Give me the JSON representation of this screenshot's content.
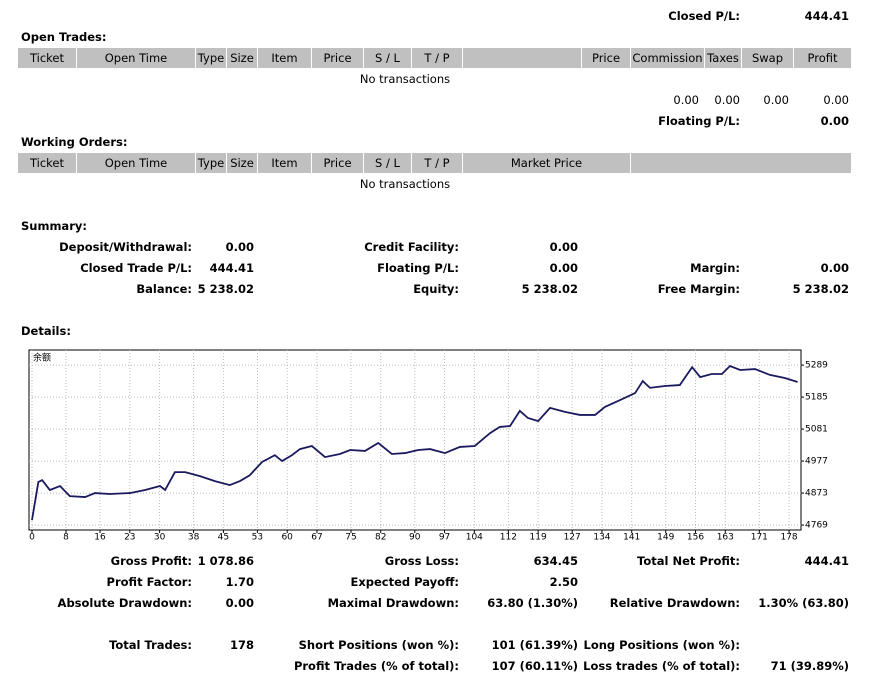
{
  "closed_pl": {
    "label": "Closed P/L:",
    "value": "444.41"
  },
  "open_trades": {
    "title": "Open Trades:",
    "headers": [
      "Ticket",
      "Open Time",
      "Type",
      "Size",
      "Item",
      "Price",
      "S / L",
      "T / P",
      "Price",
      "Commission",
      "Taxes",
      "Swap",
      "Profit"
    ],
    "empty": "No transactions",
    "totals": [
      "0.00",
      "0.00",
      "0.00",
      "0.00"
    ],
    "floating": {
      "label": "Floating P/L:",
      "value": "0.00"
    }
  },
  "working_orders": {
    "title": "Working Orders:",
    "headers": [
      "Ticket",
      "Open Time",
      "Type",
      "Size",
      "Item",
      "Price",
      "S / L",
      "T / P",
      "Market Price"
    ],
    "empty": "No transactions"
  },
  "summary": {
    "title": "Summary:",
    "rows": [
      {
        "left": {
          "label": "Deposit/Withdrawal:",
          "value": "0.00"
        },
        "middle": {
          "label": "Credit Facility:",
          "value": "0.00"
        }
      },
      {
        "left": {
          "label": "Closed Trade P/L:",
          "value": "444.41"
        },
        "middle": {
          "label": "Floating P/L:",
          "value": "0.00"
        },
        "right": {
          "label": "Margin:",
          "value": "0.00"
        }
      },
      {
        "left": {
          "label": "Balance:",
          "value": "5 238.02"
        },
        "middle": {
          "label": "Equity:",
          "value": "5 238.02"
        },
        "right": {
          "label": "Free Margin:",
          "value": "5 238.02"
        }
      }
    ]
  },
  "details": {
    "title": "Details:"
  },
  "chart_data": {
    "type": "line",
    "title": "余额",
    "xlim": [
      -0.7,
      180.8
    ],
    "ylim": [
      4753,
      5338
    ],
    "xticks": [
      0,
      8,
      16,
      23,
      30,
      38,
      45,
      53,
      60,
      67,
      75,
      82,
      90,
      97,
      104,
      112,
      119,
      127,
      134,
      141,
      149,
      156,
      163,
      171,
      178
    ],
    "yticks": [
      4769,
      4873,
      4977,
      5081,
      5185,
      5289
    ],
    "grid": true,
    "series": [
      {
        "name": "余额",
        "color": "#1a1a5e",
        "x": [
          0,
          1.5,
          2.4,
          4.2,
          6.6,
          8.9,
          12.5,
          14.8,
          18.3,
          23,
          26.6,
          30.1,
          31.3,
          33.6,
          36,
          39.5,
          43,
          46.5,
          48.9,
          51.2,
          54.1,
          57.1,
          58.8,
          61.1,
          63,
          65.8,
          68.9,
          72.4,
          74.8,
          78.3,
          81.4,
          84.6,
          87.7,
          90.8,
          93.6,
          97.1,
          100.6,
          104.1,
          107.7,
          110,
          112.4,
          114.7,
          116.6,
          119,
          121.8,
          125.3,
          128.8,
          132.4,
          134.7,
          138.2,
          141.8,
          143.6,
          145.3,
          148.8,
          152.3,
          155.2,
          157.1,
          159.8,
          162.2,
          164.1,
          166.5,
          170,
          173.5,
          177,
          180
        ],
        "values": [
          4785,
          4909,
          4915,
          4883,
          4896,
          4863,
          4860,
          4873,
          4870,
          4873,
          4883,
          4896,
          4883,
          4941,
          4941,
          4928,
          4912,
          4899,
          4912,
          4931,
          4974,
          4996,
          4977,
          4996,
          5016,
          5026,
          4990,
          5000,
          5013,
          5010,
          5036,
          5000,
          5003,
          5013,
          5016,
          5003,
          5023,
          5026,
          5068,
          5088,
          5091,
          5140,
          5117,
          5107,
          5150,
          5137,
          5127,
          5127,
          5153,
          5175,
          5198,
          5237,
          5215,
          5221,
          5224,
          5282,
          5250,
          5260,
          5260,
          5286,
          5273,
          5276,
          5257,
          5247,
          5234
        ]
      }
    ]
  },
  "stats": {
    "rows": [
      {
        "left": {
          "label": "Gross Profit:",
          "value": "1 078.86"
        },
        "middle": {
          "label": "Gross Loss:",
          "value": "634.45"
        },
        "right": {
          "label": "Total Net Profit:",
          "value": "444.41"
        }
      },
      {
        "left": {
          "label": "Profit Factor:",
          "value": "1.70"
        },
        "middle": {
          "label": "Expected Payoff:",
          "value": "2.50"
        }
      },
      {
        "left": {
          "label": "Absolute Drawdown:",
          "value": "0.00"
        },
        "middle": {
          "label": "Maximal Drawdown:",
          "value": "63.80 (1.30%)"
        },
        "right": {
          "label": "Relative Drawdown:",
          "value": "1.30% (63.80)"
        }
      },
      {
        "left": {
          "label": "Total Trades:",
          "value": "178"
        },
        "middle": {
          "label": "Short Positions (won %):",
          "value": "101 (61.39%)"
        },
        "right": {
          "label": "Long Positions (won %):"
        }
      },
      {
        "middle": {
          "label": "Profit Trades (% of total):",
          "value": "107 (60.11%)"
        },
        "right": {
          "label": "Loss trades (% of total):",
          "value": "71 (39.89%)"
        }
      }
    ]
  }
}
